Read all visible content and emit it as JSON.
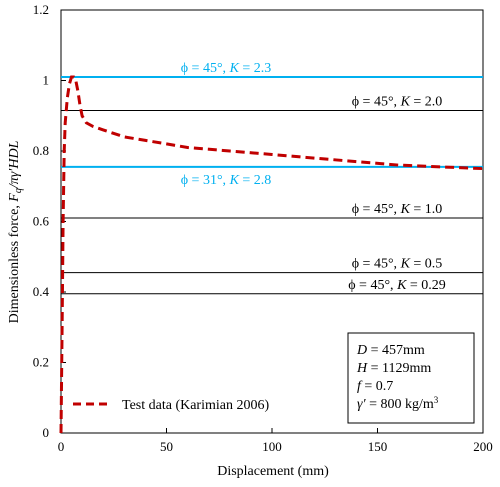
{
  "chart_data": {
    "type": "line",
    "xlabel": "Displacement (mm)",
    "ylabel_parts": {
      "text": "Dimensionless force, ",
      "F": "F",
      "sub": "q",
      "rest": "/πγ′HDL"
    },
    "xlim": [
      0,
      200
    ],
    "ylim": [
      0,
      1.2
    ],
    "x_ticks": [
      0,
      50,
      100,
      150,
      200
    ],
    "y_ticks": [
      0,
      0.2,
      0.4,
      0.6,
      0.8,
      1.0,
      1.2
    ],
    "x_tick_labels": [
      "0",
      "50",
      "100",
      "150",
      "200"
    ],
    "y_tick_labels": [
      "0",
      "0.2",
      "0.4",
      "0.6",
      "0.8",
      "1",
      "1.2"
    ],
    "grid": false,
    "legend_position": "bottom-left",
    "series": [
      {
        "name": "Test data (Karimian 2006)",
        "color": "#c00000",
        "style": "dashed",
        "x": [
          0,
          0.5,
          1,
          1.5,
          2,
          3,
          4,
          5,
          6,
          7,
          8,
          9,
          10,
          12,
          15,
          20,
          30,
          40,
          50,
          60,
          80,
          100,
          120,
          140,
          160,
          180,
          200
        ],
        "y": [
          0,
          0.3,
          0.6,
          0.8,
          0.88,
          0.95,
          0.99,
          1.01,
          1.01,
          1.0,
          0.97,
          0.93,
          0.9,
          0.88,
          0.87,
          0.86,
          0.84,
          0.83,
          0.82,
          0.81,
          0.8,
          0.79,
          0.78,
          0.77,
          0.76,
          0.755,
          0.75
        ]
      }
    ],
    "reference_lines": [
      {
        "phi": "ϕ = 45°, ",
        "K": "K",
        "val": " = 2.3",
        "y": 1.01,
        "color": "#00b0f0",
        "label_align": "center",
        "label_pos": "above"
      },
      {
        "phi": "ϕ = 45°, ",
        "K": "K",
        "val": " = 2.0",
        "y": 0.915,
        "color": "#000000",
        "label_align": "right",
        "label_pos": "above"
      },
      {
        "phi": "ϕ = 31°, ",
        "K": "K",
        "val": " = 2.8",
        "y": 0.755,
        "color": "#00b0f0",
        "label_align": "center",
        "label_pos": "below"
      },
      {
        "phi": "ϕ = 45°, ",
        "K": "K",
        "val": " = 1.0",
        "y": 0.61,
        "color": "#000000",
        "label_align": "right",
        "label_pos": "above"
      },
      {
        "phi": "ϕ = 45°, ",
        "K": "K",
        "val": " = 0.5",
        "y": 0.455,
        "color": "#000000",
        "label_align": "right",
        "label_pos": "above"
      },
      {
        "phi": "ϕ = 45°, ",
        "K": "K",
        "val": " = 0.29",
        "y": 0.395,
        "color": "#000000",
        "label_align": "right",
        "label_pos": "above"
      }
    ],
    "info_box": [
      {
        "sym": "D",
        "text": " = 457mm"
      },
      {
        "sym": "H",
        "text": " = 1129mm"
      },
      {
        "sym": "f",
        "text": " = 0.7"
      },
      {
        "sym": "γ′",
        "text": " = 800 kg/m",
        "sup": "3"
      }
    ]
  }
}
